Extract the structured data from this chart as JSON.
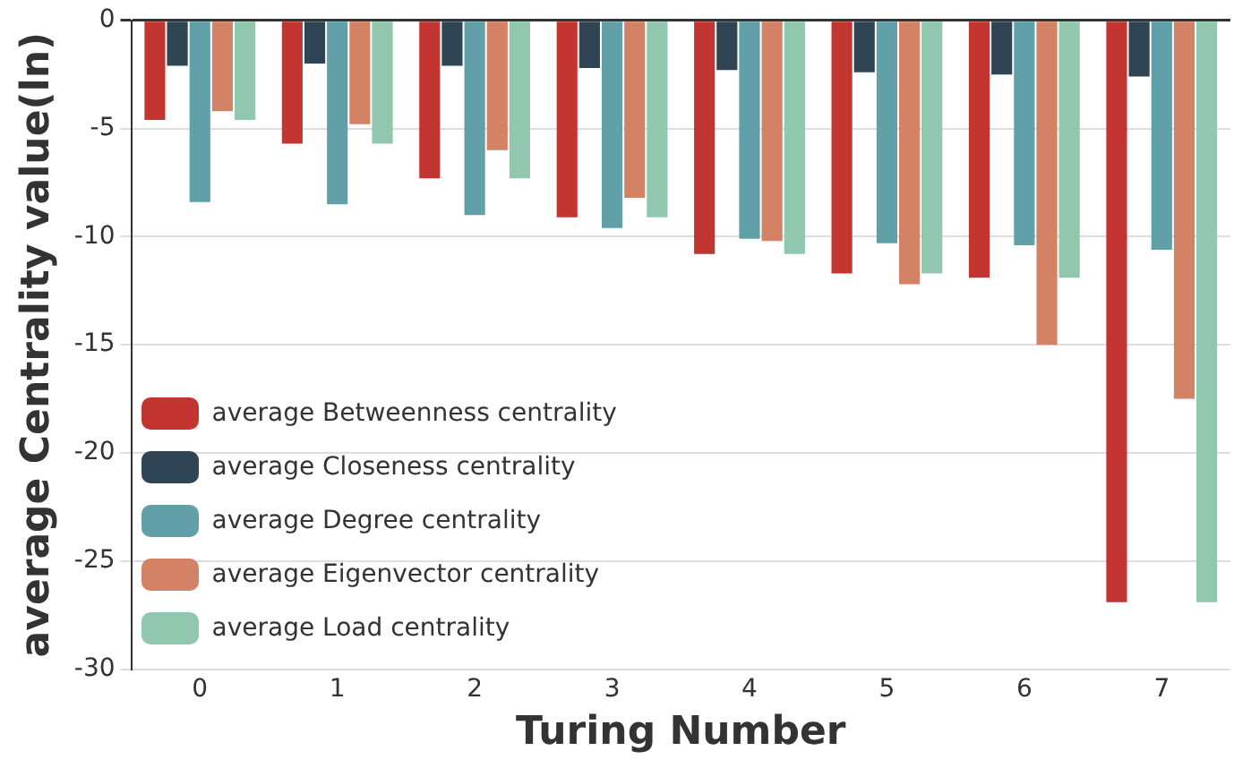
{
  "chart_data": {
    "type": "bar",
    "xlabel": "Turing Number",
    "ylabel": "average Centrality value(ln)",
    "categories": [
      "0",
      "1",
      "2",
      "3",
      "4",
      "5",
      "6",
      "7"
    ],
    "series": [
      {
        "name": "average Betweenness centrality",
        "color": "#c23531",
        "values": [
          -4.6,
          -5.7,
          -7.3,
          -9.1,
          -10.8,
          -11.7,
          -11.9,
          -26.9
        ]
      },
      {
        "name": "average Closeness centrality",
        "color": "#2f4554",
        "values": [
          -2.1,
          -2.0,
          -2.1,
          -2.2,
          -2.3,
          -2.4,
          -2.5,
          -2.6
        ]
      },
      {
        "name": "average Degree centrality",
        "color": "#61a0a8",
        "values": [
          -8.4,
          -8.5,
          -9.0,
          -9.6,
          -10.1,
          -10.3,
          -10.4,
          -10.6
        ]
      },
      {
        "name": "average Eigenvector centrality",
        "color": "#d48265",
        "values": [
          -4.2,
          -4.8,
          -6.0,
          -8.2,
          -10.2,
          -12.2,
          -15.0,
          -17.5
        ]
      },
      {
        "name": "average Load centrality",
        "color": "#91c7ae",
        "values": [
          -4.6,
          -5.7,
          -7.3,
          -9.1,
          -10.8,
          -11.7,
          -11.9,
          -26.9
        ]
      }
    ],
    "ylim": [
      -30,
      0
    ],
    "yticks": [
      0,
      -5,
      -10,
      -15,
      -20,
      -25,
      -30
    ],
    "grid": "y",
    "legend": "bottom left"
  }
}
